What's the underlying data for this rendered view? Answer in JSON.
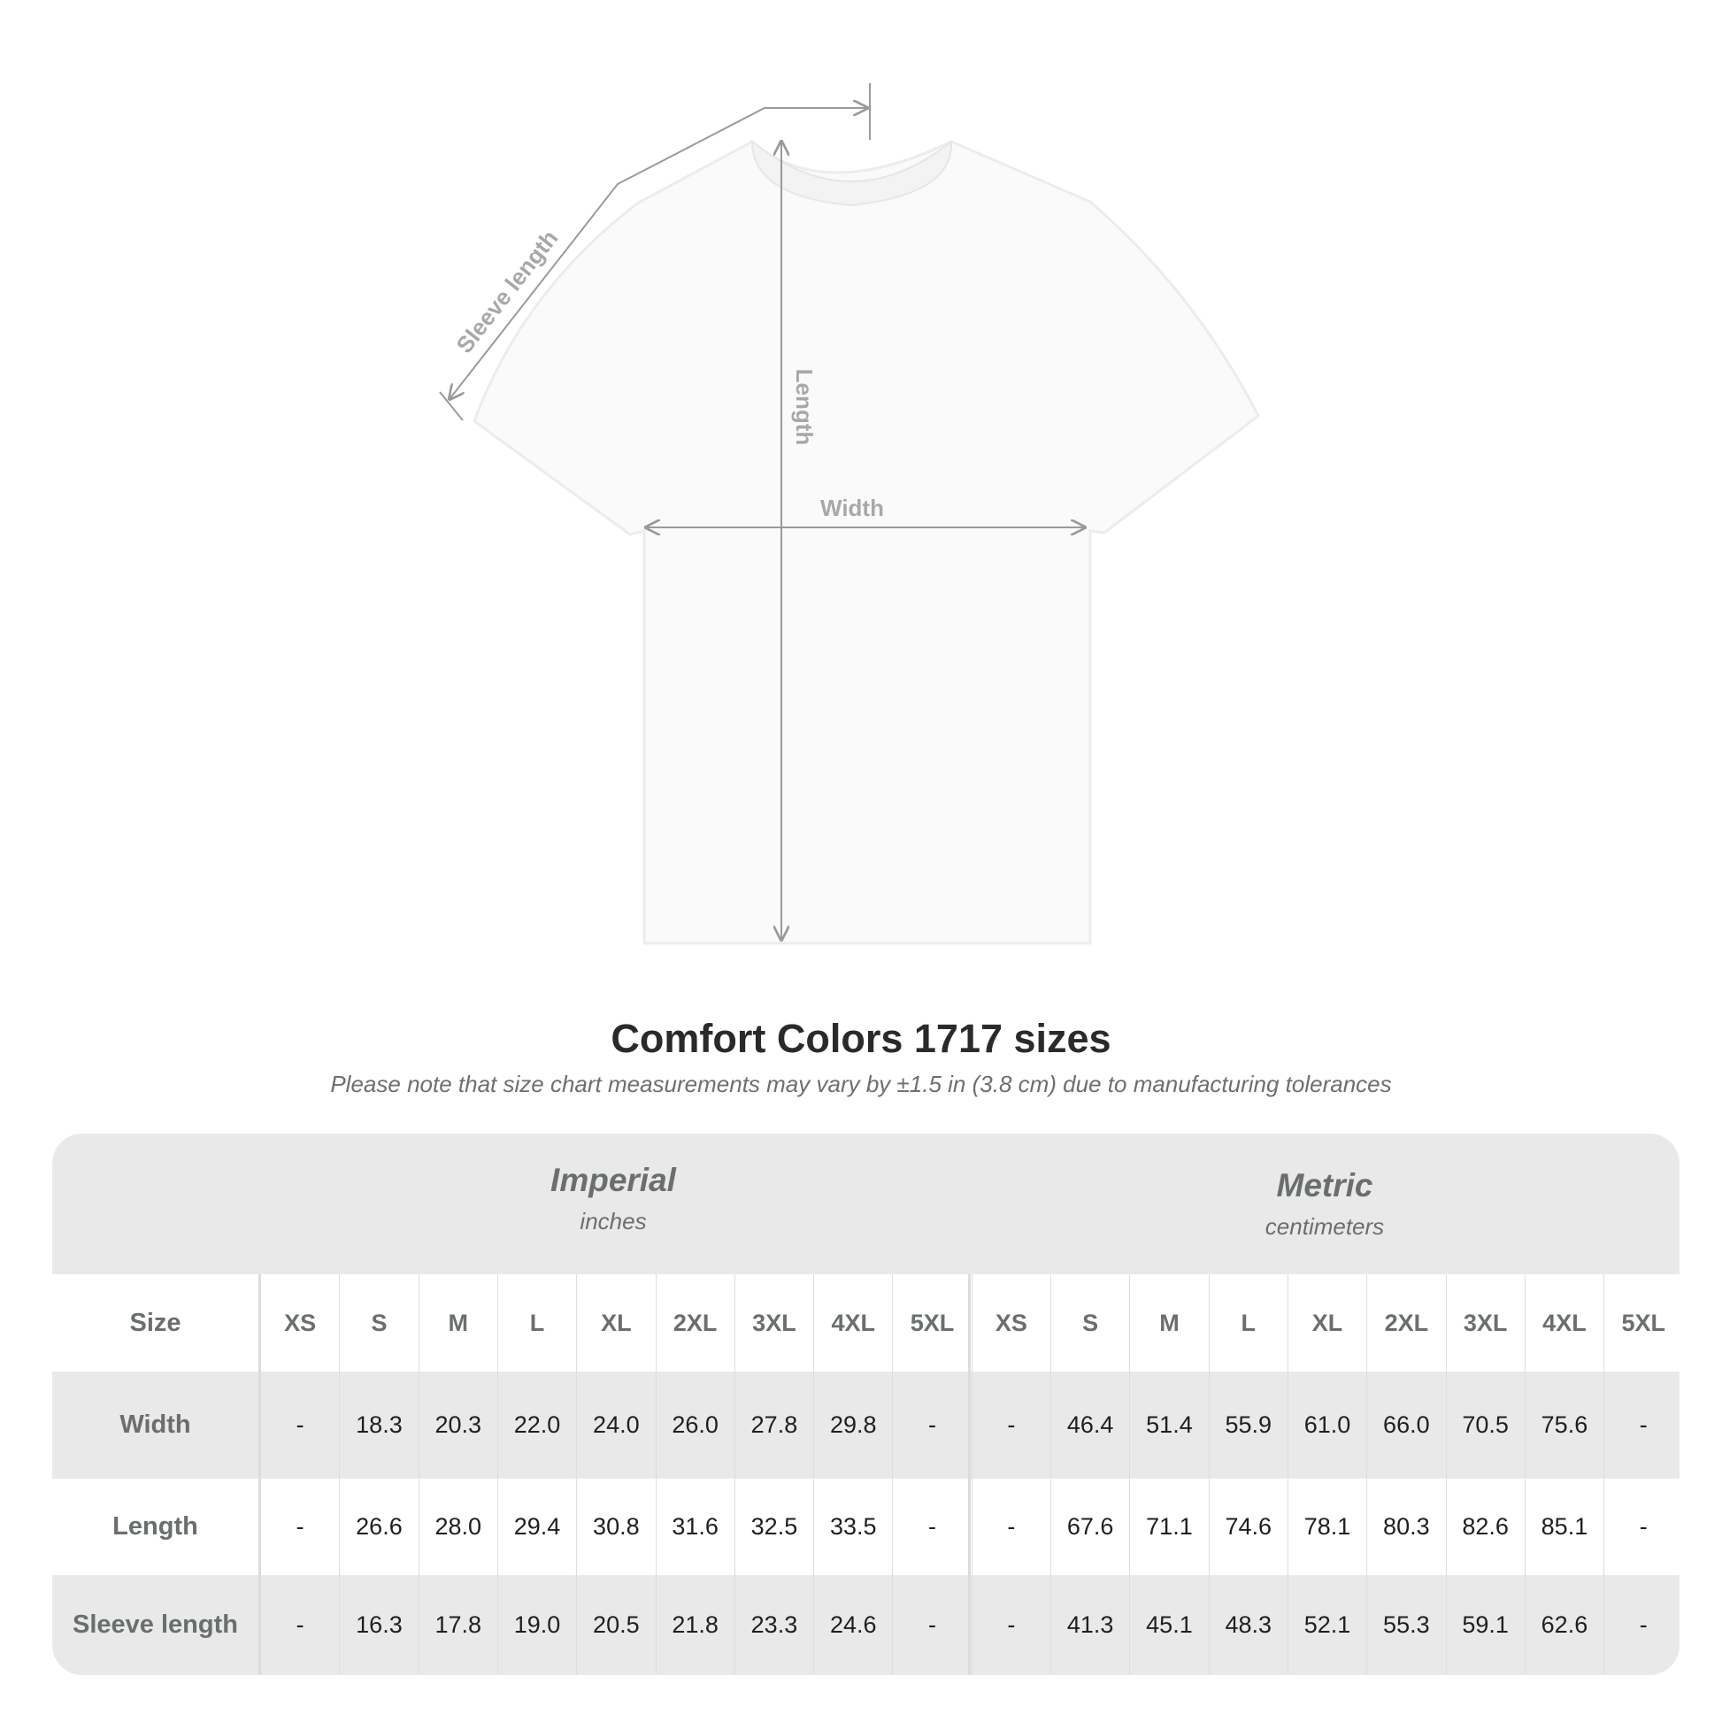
{
  "diagram": {
    "labels": {
      "sleeve": "Sleeve length",
      "length": "Length",
      "width": "Width"
    }
  },
  "title": "Comfort Colors 1717 sizes",
  "subtitle": "Please note that size chart measurements may vary by ±1.5 in (3.8 cm) due to manufacturing tolerances",
  "table": {
    "imperial": {
      "name": "Imperial",
      "unit": "inches"
    },
    "metric": {
      "name": "Metric",
      "unit": "centimeters"
    },
    "size_label": "Size",
    "sizes": [
      "XS",
      "S",
      "M",
      "L",
      "XL",
      "2XL",
      "3XL",
      "4XL",
      "5XL"
    ],
    "rows": [
      {
        "label": "Width",
        "imperial": [
          "-",
          "18.3",
          "20.3",
          "22.0",
          "24.0",
          "26.0",
          "27.8",
          "29.8",
          "-"
        ],
        "metric": [
          "-",
          "46.4",
          "51.4",
          "55.9",
          "61.0",
          "66.0",
          "70.5",
          "75.6",
          "-"
        ]
      },
      {
        "label": "Length",
        "imperial": [
          "-",
          "26.6",
          "28.0",
          "29.4",
          "30.8",
          "31.6",
          "32.5",
          "33.5",
          "-"
        ],
        "metric": [
          "-",
          "67.6",
          "71.1",
          "74.6",
          "78.1",
          "80.3",
          "82.6",
          "85.1",
          "-"
        ]
      },
      {
        "label": "Sleeve length",
        "imperial": [
          "-",
          "16.3",
          "17.8",
          "19.0",
          "20.5",
          "21.8",
          "23.3",
          "24.6",
          "-"
        ],
        "metric": [
          "-",
          "41.3",
          "45.1",
          "48.3",
          "52.1",
          "55.3",
          "59.1",
          "62.6",
          "-"
        ]
      }
    ]
  },
  "colors": {
    "header_bg": "#e9e9e9",
    "label_text": "#6a6e6f",
    "arrow": "#9a9a9a"
  }
}
